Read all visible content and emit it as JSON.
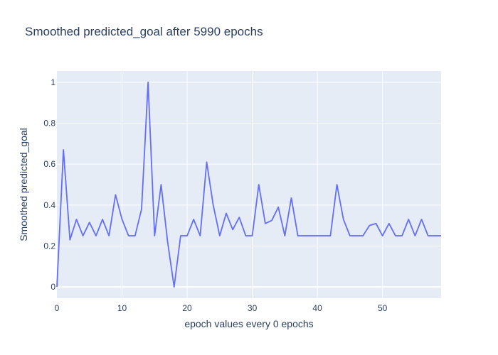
{
  "chart_data": {
    "type": "line",
    "title": "Smoothed predicted_goal after 5990 epochs",
    "xlabel": "epoch values every 0 epochs",
    "ylabel": "Smoothed predicted_goal",
    "xlim": [
      0,
      59
    ],
    "ylim": [
      -0.055,
      1.055
    ],
    "xticks": [
      0,
      10,
      20,
      30,
      40,
      50
    ],
    "yticks": [
      0,
      0.2,
      0.4,
      0.6,
      0.8,
      1
    ],
    "xtick_labels": [
      "0",
      "10",
      "20",
      "30",
      "40",
      "50"
    ],
    "ytick_labels": [
      "0",
      "0.2",
      "0.4",
      "0.6",
      "0.8",
      "1"
    ],
    "grid": true,
    "colors": {
      "line": "#636efa",
      "plot_bg": "#e5ecf6",
      "grid": "#ffffff",
      "text": "#2a3f5f"
    },
    "series": [
      {
        "x": [
          0,
          1,
          2,
          3,
          4,
          5,
          6,
          7,
          8,
          9,
          10,
          11,
          12,
          13,
          14,
          15,
          16,
          17,
          18,
          19,
          20,
          21,
          22,
          23,
          24,
          25,
          26,
          27,
          28,
          29,
          30,
          31,
          32,
          33,
          34,
          35,
          36,
          37,
          38,
          39,
          40,
          41,
          42,
          43,
          44,
          45,
          46,
          47,
          48,
          49,
          50,
          51,
          52,
          53,
          54,
          55,
          56,
          57,
          58,
          59
        ],
        "y": [
          0,
          0.67,
          0.23,
          0.33,
          0.25,
          0.315,
          0.25,
          0.33,
          0.25,
          0.45,
          0.33,
          0.25,
          0.25,
          0.38,
          1.0,
          0.25,
          0.5,
          0.22,
          0,
          0.25,
          0.25,
          0.33,
          0.25,
          0.61,
          0.4,
          0.25,
          0.36,
          0.28,
          0.34,
          0.25,
          0.25,
          0.5,
          0.31,
          0.325,
          0.39,
          0.25,
          0.435,
          0.25,
          0.25,
          0.25,
          0.25,
          0.25,
          0.25,
          0.5,
          0.33,
          0.25,
          0.25,
          0.25,
          0.3,
          0.31,
          0.25,
          0.31,
          0.25,
          0.25,
          0.33,
          0.25,
          0.33,
          0.25,
          0.25,
          0.25
        ]
      }
    ]
  }
}
